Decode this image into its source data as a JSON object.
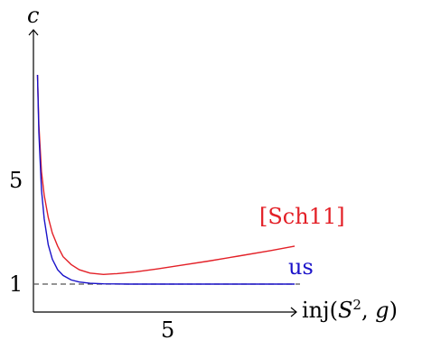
{
  "chart_data": {
    "type": "line",
    "ylabel": "c",
    "xlabel_parts": [
      "inj(",
      "S",
      "2",
      ", ",
      "g",
      ")"
    ],
    "xticks": [
      5
    ],
    "yticks": [
      1,
      5
    ],
    "xlim": [
      0,
      10
    ],
    "ylim": [
      0,
      10
    ],
    "reference_line": {
      "y": 1,
      "style": "dashed"
    },
    "series": [
      {
        "name": "[Sch11]",
        "color": "#e32027",
        "points": [
          [
            0.15,
            9.0
          ],
          [
            0.2,
            7.1
          ],
          [
            0.3,
            5.3
          ],
          [
            0.4,
            4.4
          ],
          [
            0.55,
            3.55
          ],
          [
            0.7,
            2.95
          ],
          [
            0.9,
            2.45
          ],
          [
            1.1,
            2.05
          ],
          [
            1.4,
            1.75
          ],
          [
            1.7,
            1.55
          ],
          [
            2.1,
            1.42
          ],
          [
            2.6,
            1.37
          ],
          [
            3.1,
            1.4
          ],
          [
            3.8,
            1.47
          ],
          [
            4.6,
            1.58
          ],
          [
            5.5,
            1.72
          ],
          [
            6.5,
            1.88
          ],
          [
            7.6,
            2.07
          ],
          [
            8.8,
            2.28
          ],
          [
            9.7,
            2.45
          ]
        ]
      },
      {
        "name": "us",
        "color": "#1a12c9",
        "points": [
          [
            0.15,
            9.0
          ],
          [
            0.2,
            6.8
          ],
          [
            0.3,
            4.6
          ],
          [
            0.4,
            3.5
          ],
          [
            0.55,
            2.5
          ],
          [
            0.7,
            1.95
          ],
          [
            0.9,
            1.55
          ],
          [
            1.1,
            1.33
          ],
          [
            1.4,
            1.16
          ],
          [
            1.7,
            1.08
          ],
          [
            2.1,
            1.03
          ],
          [
            2.6,
            1.01
          ],
          [
            3.5,
            1.0
          ],
          [
            5.0,
            1.0
          ],
          [
            7.0,
            1.0
          ],
          [
            9.7,
            1.0
          ]
        ]
      }
    ]
  }
}
